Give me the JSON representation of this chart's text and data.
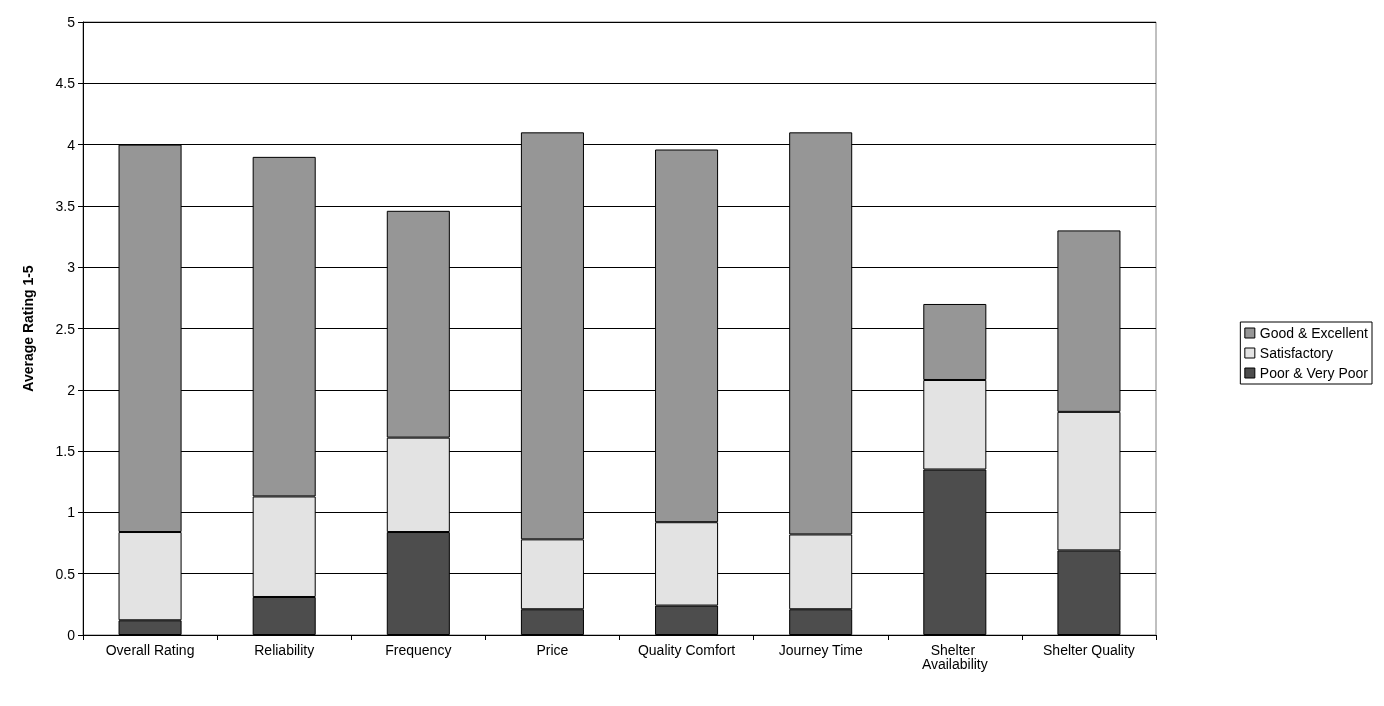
{
  "chart_data": {
    "type": "bar",
    "stacked": true,
    "ylabel": "Average Rating 1-5",
    "categories": [
      "Overall Rating",
      "Reliability",
      "Frequency",
      "Price",
      "Quality Comfort",
      "Journey Time",
      "Shelter Availability",
      "Shelter Quality"
    ],
    "series": [
      {
        "name": "Poor & Very Poor",
        "color": "#4d4d4d",
        "values": [
          0.12,
          0.31,
          0.84,
          0.21,
          0.24,
          0.21,
          1.35,
          0.69
        ]
      },
      {
        "name": "Satisfactory",
        "color": "#e3e3e3",
        "values": [
          0.72,
          0.82,
          0.77,
          0.57,
          0.68,
          0.61,
          0.73,
          1.13
        ]
      },
      {
        "name": "Good & Excellent",
        "color": "#969696",
        "values": [
          3.16,
          2.77,
          1.85,
          3.32,
          3.04,
          3.28,
          0.62,
          1.48
        ]
      }
    ],
    "ylim": [
      0,
      5
    ],
    "yticks": [
      0,
      0.5,
      1,
      1.5,
      2,
      2.5,
      3,
      3.5,
      4,
      4.5,
      5
    ],
    "grid": "y",
    "legend": "right"
  }
}
